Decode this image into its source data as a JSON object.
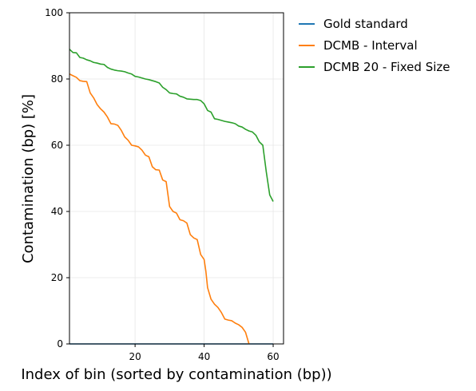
{
  "chart_data": {
    "type": "line",
    "title": "",
    "xlabel": "Index of bin (sorted by contamination (bp))",
    "ylabel": "Contamination (bp) [%]",
    "xlim": [
      1,
      63
    ],
    "ylim": [
      0,
      100
    ],
    "xticks": [
      20,
      40,
      60
    ],
    "yticks": [
      0,
      20,
      40,
      60,
      80,
      100
    ],
    "grid": true,
    "legend_position": "outside-top-right",
    "series": [
      {
        "name": "Gold standard",
        "color": "#1f77b4",
        "x": [
          1,
          60
        ],
        "y": [
          0,
          0
        ]
      },
      {
        "name": "DCMB - Interval",
        "color": "#ff7f0e",
        "x": [
          1,
          2,
          3,
          4,
          5,
          6,
          7,
          8,
          9,
          10,
          11,
          12,
          13,
          14,
          15,
          16,
          17,
          18,
          19,
          20,
          21,
          22,
          23,
          24,
          25,
          26,
          27,
          28,
          29,
          30,
          31,
          32,
          33,
          34,
          35,
          36,
          37,
          38,
          39,
          40,
          40.5,
          41,
          42,
          43,
          44,
          45,
          46,
          47,
          48,
          49,
          50,
          51,
          52,
          53
        ],
        "y": [
          81.5,
          81,
          80.5,
          79.5,
          79.3,
          79.2,
          75.8,
          74.3,
          72.3,
          71,
          70,
          68.5,
          66.5,
          66.4,
          66,
          64.5,
          62.5,
          61.5,
          60,
          59.8,
          59.5,
          58.5,
          57,
          56.5,
          53.5,
          52.6,
          52.5,
          49.5,
          49,
          41.5,
          40,
          39.5,
          37.5,
          37.2,
          36.5,
          33,
          32,
          31.5,
          27,
          25.5,
          22,
          17,
          13.5,
          12,
          11,
          9.5,
          7.5,
          7.2,
          7,
          6.3,
          5.8,
          5,
          3.5,
          0
        ]
      },
      {
        "name": "DCMB 20 - Fixed Size",
        "color": "#2ca02c",
        "x": [
          1,
          2,
          3,
          4,
          5,
          6,
          7,
          8,
          9,
          10,
          11,
          12,
          13,
          14,
          15,
          16,
          17,
          18,
          19,
          20,
          21,
          22,
          23,
          24,
          25,
          26,
          27,
          28,
          29,
          30,
          31,
          32,
          33,
          34,
          35,
          36,
          37,
          38,
          39,
          40,
          41,
          42,
          43,
          44,
          45,
          46,
          47,
          48,
          49,
          50,
          51,
          52,
          53,
          54,
          55,
          56,
          57,
          58,
          59,
          60
        ],
        "y": [
          89,
          88,
          87.9,
          86.5,
          86.3,
          85.8,
          85.5,
          85,
          84.8,
          84.5,
          84.4,
          83.5,
          83,
          82.7,
          82.5,
          82.4,
          82.2,
          81.8,
          81.5,
          80.8,
          80.6,
          80.3,
          80,
          79.8,
          79.5,
          79.2,
          78.8,
          77.5,
          76.8,
          75.8,
          75.6,
          75.5,
          74.8,
          74.5,
          74,
          73.9,
          73.8,
          73.8,
          73.5,
          72.5,
          70.5,
          70,
          68,
          67.8,
          67.5,
          67.2,
          67,
          66.8,
          66.5,
          65.8,
          65.5,
          64.8,
          64.3,
          64,
          63,
          61,
          60,
          52,
          45,
          43
        ]
      }
    ]
  }
}
